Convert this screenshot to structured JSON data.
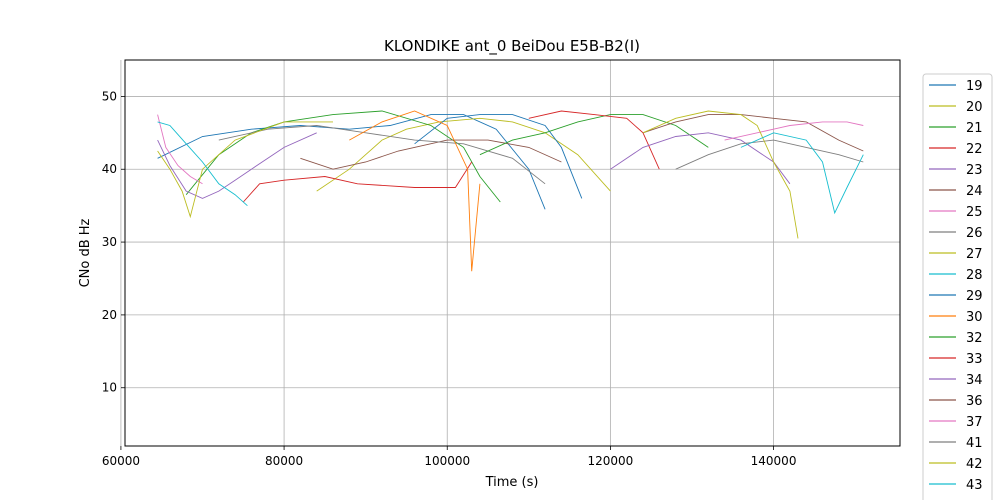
{
  "chart_data": {
    "type": "line",
    "title": "KLONDIKE ant_0 BeiDou E5B-B2(I)",
    "xlabel": "Time (s)",
    "ylabel": "CNo dB Hz",
    "xlim": [
      60500,
      155500
    ],
    "ylim": [
      2,
      55
    ],
    "xticks": [
      60000,
      80000,
      100000,
      120000,
      140000
    ],
    "xtick_labels": [
      "60000",
      "80000",
      "100000",
      "120000",
      "140000"
    ],
    "yticks": [
      10,
      20,
      30,
      40,
      50
    ],
    "ytick_labels": [
      "10",
      "20",
      "30",
      "40",
      "50"
    ],
    "grid": true,
    "legend_position": "right-outside",
    "series": [
      {
        "name": "19",
        "color": "#1f77b4",
        "x": [
          64500,
          70000,
          76000,
          82000,
          88000,
          93000,
          98000,
          102000,
          106000,
          110000,
          112000
        ],
        "y": [
          41.5,
          44.5,
          45.5,
          46,
          45.5,
          46,
          47.5,
          47.5,
          45.5,
          40,
          34.5
        ]
      },
      {
        "name": "20",
        "color": "#bcbd22",
        "x": [
          84000,
          88000,
          92000,
          95000,
          99000,
          104000,
          108000,
          112000,
          116000,
          120000
        ],
        "y": [
          37,
          40,
          44,
          45.5,
          46.5,
          47,
          46.5,
          45,
          42,
          37
        ]
      },
      {
        "name": "21",
        "color": "#2ca02c",
        "x": [
          68000,
          72000,
          76000,
          80000,
          86000,
          92000,
          98000,
          102000,
          104000,
          106500
        ],
        "y": [
          36.5,
          42,
          45,
          46.5,
          47.5,
          48,
          46,
          43,
          39,
          35.5
        ]
      },
      {
        "name": "22",
        "color": "#d62728",
        "x": [
          75000,
          77000,
          80000,
          85000,
          89000,
          96000,
          101000,
          103000
        ],
        "y": [
          35.5,
          38,
          38.5,
          39,
          38,
          37.5,
          37.5,
          41
        ]
      },
      {
        "name": "23",
        "color": "#9467bd",
        "x": [
          64500,
          66000,
          68000,
          70000,
          72000,
          74000,
          76000,
          80000,
          84000
        ],
        "y": [
          44,
          40.5,
          37,
          36,
          37,
          38.5,
          40,
          43,
          45
        ]
      },
      {
        "name": "24",
        "color": "#8c564b",
        "x": [
          82000,
          86000,
          90000,
          94000,
          100000,
          105000,
          110000,
          114000
        ],
        "y": [
          41.5,
          40,
          41,
          42.5,
          44,
          44,
          43,
          41
        ]
      },
      {
        "name": "25",
        "color": "#e377c2",
        "x": [
          64500,
          65500,
          67000,
          68500,
          70000
        ],
        "y": [
          47.5,
          43,
          40.5,
          39,
          38
        ]
      },
      {
        "name": "26",
        "color": "#7f7f7f",
        "x": [
          72000,
          78000,
          84000,
          90000,
          96000,
          102000,
          108000,
          112000
        ],
        "y": [
          44,
          45.5,
          46,
          45,
          44,
          43.5,
          41.5,
          38
        ]
      },
      {
        "name": "27",
        "color": "#bcbd22",
        "x": [
          64500,
          66000,
          67500,
          68500,
          70000,
          74000,
          80000,
          86000
        ],
        "y": [
          42.5,
          40,
          37,
          33.5,
          40,
          44,
          46.5,
          46.5
        ]
      },
      {
        "name": "28",
        "color": "#17becf",
        "x": [
          64500,
          66000,
          68000,
          70000,
          72000,
          74000,
          75500
        ],
        "y": [
          46.5,
          46,
          43.5,
          41,
          38,
          36.5,
          35
        ]
      },
      {
        "name": "29",
        "color": "#1f77b4",
        "x": [
          96000,
          100000,
          104000,
          108000,
          112000,
          114000,
          116500
        ],
        "y": [
          43.5,
          47,
          47.5,
          47.5,
          46,
          43,
          36
        ]
      },
      {
        "name": "30",
        "color": "#ff7f0e",
        "x": [
          88000,
          92000,
          96000,
          100000,
          102500,
          103000,
          104000
        ],
        "y": [
          44,
          46.5,
          48,
          46,
          40,
          26,
          38
        ]
      },
      {
        "name": "32",
        "color": "#2ca02c",
        "x": [
          104000,
          108000,
          112000,
          116000,
          120000,
          124000,
          128000,
          132000
        ],
        "y": [
          42,
          44,
          45,
          46.5,
          47.5,
          47.5,
          46,
          43
        ]
      },
      {
        "name": "33",
        "color": "#d62728",
        "x": [
          110000,
          114000,
          118000,
          122000,
          124000,
          126000
        ],
        "y": [
          47,
          48,
          47.5,
          47,
          45,
          40
        ]
      },
      {
        "name": "34",
        "color": "#9467bd",
        "x": [
          120000,
          124000,
          128000,
          132000,
          136000,
          140000,
          142000
        ],
        "y": [
          40,
          43,
          44.5,
          45,
          44,
          41,
          38
        ]
      },
      {
        "name": "36",
        "color": "#8c564b",
        "x": [
          124000,
          128000,
          132000,
          136000,
          140000,
          144000,
          148000,
          151000
        ],
        "y": [
          45,
          46.5,
          47.5,
          47.5,
          47,
          46.5,
          44,
          42.5
        ]
      },
      {
        "name": "37",
        "color": "#e377c2",
        "x": [
          134000,
          138000,
          142000,
          146000,
          149000,
          151000
        ],
        "y": [
          44,
          45,
          46,
          46.5,
          46.5,
          46
        ]
      },
      {
        "name": "41",
        "color": "#7f7f7f",
        "x": [
          128000,
          132000,
          136000,
          140000,
          144000,
          148000,
          151000
        ],
        "y": [
          40,
          42,
          43.5,
          44,
          43,
          42,
          41
        ]
      },
      {
        "name": "42",
        "color": "#bcbd22",
        "x": [
          124000,
          128000,
          132000,
          136000,
          138000,
          140000,
          142000,
          143000
        ],
        "y": [
          45,
          47,
          48,
          47.5,
          46,
          41,
          37,
          30.5
        ]
      },
      {
        "name": "43",
        "color": "#17becf",
        "x": [
          136000,
          140000,
          144000,
          146000,
          147500,
          149000,
          151000
        ],
        "y": [
          43,
          45,
          44,
          41,
          34,
          37.5,
          42
        ]
      }
    ]
  }
}
